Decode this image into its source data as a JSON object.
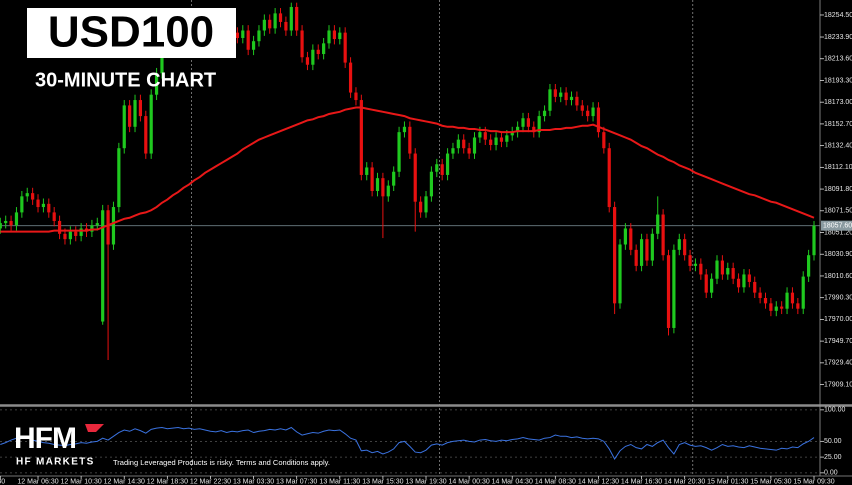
{
  "chart_data": {
    "type": "candlestick",
    "title": "USD100",
    "subtitle": "30-MINUTE CHART",
    "categories": [
      ":30",
      null,
      null,
      null,
      null,
      null,
      null,
      "12 Mar 06:30",
      null,
      null,
      null,
      null,
      null,
      null,
      null,
      "12 Mar 10:30",
      null,
      null,
      null,
      null,
      null,
      null,
      null,
      "12 Mar 14:30",
      null,
      null,
      null,
      null,
      null,
      null,
      null,
      "12 Mar 18:30",
      null,
      null,
      null,
      null,
      null,
      null,
      null,
      "12 Mar 22:30",
      null,
      null,
      null,
      null,
      null,
      null,
      null,
      "13 Mar 03:30",
      null,
      null,
      null,
      null,
      null,
      null,
      null,
      "13 Mar 07:30",
      null,
      null,
      null,
      null,
      null,
      null,
      null,
      "13 Mar 11:30",
      null,
      null,
      null,
      null,
      null,
      null,
      null,
      "13 Mar 15:30",
      null,
      null,
      null,
      null,
      null,
      null,
      null,
      "13 Mar 19:30",
      null,
      null,
      null,
      null,
      null,
      null,
      null,
      "14 Mar 00:30",
      null,
      null,
      null,
      null,
      null,
      null,
      null,
      "14 Mar 04:30",
      null,
      null,
      null,
      null,
      null,
      null,
      null,
      "14 Mar 08:30",
      null,
      null,
      null,
      null,
      null,
      null,
      null,
      "14 Mar 12:30",
      null,
      null,
      null,
      null,
      null,
      null,
      null,
      "14 Mar 16:30",
      null,
      null,
      null,
      null,
      null,
      null,
      null,
      "14 Mar 20:30",
      null,
      null,
      null,
      null,
      null,
      null,
      null,
      "15 Mar 01:30",
      null,
      null,
      null,
      null,
      null,
      null,
      null,
      "15 Mar 05:30",
      null,
      null,
      null,
      null,
      null,
      null,
      null,
      "15 Mar 09:30"
    ],
    "open": [
      18055,
      18060,
      18062,
      18058,
      18070,
      18085,
      18088,
      18082,
      18075,
      18078,
      18070,
      18062,
      18050,
      18045,
      18052,
      18048,
      18055,
      18052,
      18058,
      17968,
      18072,
      18040,
      18075,
      18130,
      18170,
      18150,
      18175,
      18160,
      18125,
      18180,
      18200,
      18225,
      18235,
      18240,
      18232,
      18245,
      18238,
      18250,
      18242,
      18236,
      18228,
      18220,
      18232,
      18226,
      18238,
      18233,
      18240,
      18222,
      18230,
      18240,
      18250,
      18242,
      18256,
      18248,
      18240,
      18262,
      18240,
      18215,
      18208,
      18222,
      18218,
      18228,
      18240,
      18232,
      18238,
      18210,
      18182,
      18175,
      18105,
      18112,
      18090,
      18102,
      18085,
      18095,
      18108,
      18145,
      18150,
      18125,
      18080,
      18070,
      18085,
      18108,
      18115,
      18105,
      18125,
      18130,
      18138,
      18130,
      18125,
      18140,
      18145,
      18138,
      18133,
      18140,
      18136,
      18142,
      18145,
      18150,
      18158,
      18150,
      18145,
      18160,
      18165,
      18185,
      18178,
      18182,
      18175,
      18178,
      18170,
      18165,
      18160,
      18168,
      18145,
      18130,
      18075,
      17985,
      18040,
      18055,
      18035,
      18020,
      18045,
      18025,
      18050,
      18068,
      18030,
      17962,
      18035,
      18045,
      18030,
      18020,
      18022,
      18012,
      17995,
      18008,
      18025,
      18012,
      18018,
      18008,
      18000,
      18012,
      18005,
      17995,
      17990,
      17985,
      17978,
      17982,
      17980,
      17995,
      17985,
      17980,
      18010,
      18030
    ],
    "high": [
      18065,
      18067,
      18067,
      18075,
      18090,
      18093,
      18093,
      18087,
      18083,
      18083,
      18075,
      18067,
      18055,
      18057,
      18057,
      18060,
      18060,
      18063,
      18065,
      18077,
      18077,
      18080,
      18135,
      18175,
      18175,
      18180,
      18180,
      18165,
      18185,
      18205,
      18230,
      18240,
      18245,
      18245,
      18250,
      18250,
      18255,
      18255,
      18247,
      18241,
      18233,
      18237,
      18237,
      18243,
      18243,
      18245,
      18245,
      18235,
      18245,
      18255,
      18255,
      18261,
      18261,
      18253,
      18266,
      18266,
      18245,
      18220,
      18227,
      18227,
      18233,
      18245,
      18245,
      18243,
      18243,
      18215,
      18187,
      18180,
      18117,
      18117,
      18107,
      18107,
      18100,
      18113,
      18150,
      18155,
      18155,
      18130,
      18085,
      18090,
      18113,
      18120,
      18120,
      18130,
      18135,
      18143,
      18143,
      18135,
      18145,
      18150,
      18150,
      18143,
      18145,
      18145,
      18147,
      18150,
      18155,
      18163,
      18163,
      18155,
      18165,
      18170,
      18190,
      18190,
      18187,
      18187,
      18183,
      18183,
      18175,
      18170,
      18173,
      18173,
      18150,
      18135,
      18080,
      18045,
      18060,
      18060,
      18040,
      18050,
      18050,
      18055,
      18085,
      18073,
      18035,
      18040,
      18050,
      18050,
      18035,
      18027,
      18027,
      18017,
      18013,
      18030,
      18030,
      18023,
      18023,
      18013,
      18017,
      18017,
      18010,
      18000,
      17995,
      17990,
      17987,
      17987,
      18000,
      18000,
      17990,
      18015,
      18035,
      18062
    ],
    "low": [
      18050,
      18055,
      18053,
      18053,
      18065,
      18080,
      18077,
      18070,
      18070,
      18065,
      18057,
      18045,
      18040,
      18040,
      18043,
      18043,
      18047,
      18047,
      18053,
      17965,
      17932,
      18035,
      18070,
      18125,
      18145,
      18145,
      18155,
      18120,
      18120,
      18175,
      18195,
      18220,
      18230,
      18227,
      18227,
      18233,
      18233,
      18237,
      18231,
      18223,
      18215,
      18215,
      18221,
      18221,
      18228,
      18228,
      18217,
      18217,
      18225,
      18235,
      18237,
      18237,
      18243,
      18235,
      18235,
      18235,
      18210,
      18203,
      18203,
      18213,
      18213,
      18223,
      18227,
      18227,
      18205,
      18177,
      18170,
      18100,
      18100,
      18085,
      18085,
      18046,
      18080,
      18090,
      18103,
      18140,
      18120,
      18052,
      18065,
      18065,
      18080,
      18103,
      18100,
      18100,
      18120,
      18125,
      18125,
      18120,
      18120,
      18135,
      18133,
      18128,
      18128,
      18131,
      18131,
      18137,
      18140,
      18145,
      18145,
      18140,
      18140,
      18155,
      18160,
      18173,
      18173,
      18170,
      18170,
      18165,
      18160,
      18155,
      18155,
      18140,
      18125,
      18070,
      17975,
      17980,
      18035,
      18030,
      18015,
      18015,
      18020,
      18020,
      18045,
      18025,
      17955,
      17957,
      18030,
      18025,
      18015,
      18015,
      18007,
      17990,
      17990,
      18003,
      18007,
      18007,
      18003,
      17995,
      17995,
      18000,
      17990,
      17985,
      17980,
      17973,
      17973,
      17975,
      17975,
      17980,
      17975,
      17975,
      18005,
      18025
    ],
    "close": [
      18060,
      18062,
      18058,
      18070,
      18085,
      18088,
      18082,
      18075,
      18078,
      18070,
      18062,
      18050,
      18045,
      18052,
      18048,
      18055,
      18052,
      18058,
      18060,
      18072,
      18040,
      18075,
      18130,
      18170,
      18150,
      18175,
      18160,
      18125,
      18180,
      18200,
      18225,
      18235,
      18240,
      18232,
      18245,
      18238,
      18250,
      18242,
      18236,
      18228,
      18220,
      18232,
      18226,
      18238,
      18233,
      18240,
      18222,
      18230,
      18240,
      18250,
      18242,
      18256,
      18248,
      18240,
      18262,
      18240,
      18215,
      18208,
      18222,
      18218,
      18228,
      18240,
      18232,
      18238,
      18210,
      18182,
      18175,
      18105,
      18112,
      18090,
      18102,
      18085,
      18095,
      18108,
      18145,
      18150,
      18125,
      18080,
      18070,
      18085,
      18108,
      18115,
      18105,
      18125,
      18130,
      18138,
      18130,
      18125,
      18140,
      18145,
      18138,
      18133,
      18140,
      18136,
      18142,
      18145,
      18150,
      18158,
      18150,
      18145,
      18160,
      18165,
      18185,
      18178,
      18182,
      18175,
      18178,
      18170,
      18165,
      18160,
      18168,
      18145,
      18130,
      18075,
      17985,
      18040,
      18055,
      18035,
      18020,
      18045,
      18025,
      18050,
      18068,
      18030,
      17962,
      18035,
      18045,
      18030,
      18020,
      18022,
      18012,
      17995,
      18008,
      18025,
      18012,
      18018,
      18008,
      18000,
      18012,
      18005,
      17995,
      17990,
      17985,
      17978,
      17982,
      17980,
      17995,
      17985,
      17980,
      18010,
      18030,
      18057.6
    ],
    "up_color": "#1fc91f",
    "down_color": "#e81010",
    "ylim": [
      17890,
      18268.5
    ],
    "yticks": [
      {
        "value": 18254.5,
        "label": "18254.50"
      },
      {
        "value": 18233.9,
        "label": "18233.90"
      },
      {
        "value": 18213.6,
        "label": "18213.60"
      },
      {
        "value": 18193.3,
        "label": "18193.30"
      },
      {
        "value": 18173,
        "label": "18173.00"
      },
      {
        "value": 18152.7,
        "label": "18152.70"
      },
      {
        "value": 18132.4,
        "label": "18132.40"
      },
      {
        "value": 18112.1,
        "label": "18112.10"
      },
      {
        "value": 18091.8,
        "label": "18091.80"
      },
      {
        "value": 18071.5,
        "label": "18071.50"
      },
      {
        "value": 18051.2,
        "label": "18051.20"
      },
      {
        "value": 18030.9,
        "label": "18030.90"
      },
      {
        "value": 18010.6,
        "label": "18010.60"
      },
      {
        "value": 17990.3,
        "label": "17990.30"
      },
      {
        "value": 17970,
        "label": "17970.00"
      },
      {
        "value": 17949.7,
        "label": "17949.70"
      },
      {
        "value": 17929.4,
        "label": "17929.40"
      },
      {
        "value": 17909.1,
        "label": "17909.10"
      }
    ],
    "last_price": {
      "value": 18057.6,
      "label": "18057.60"
    },
    "moving_average": {
      "color": "#e81818",
      "values": [
        18052,
        18052,
        18052,
        18052,
        18052,
        18052,
        18052,
        18052,
        18052,
        18052,
        18053,
        18053,
        18053,
        18053,
        18053,
        18053,
        18053,
        18054,
        18054,
        18056,
        18058,
        18060,
        18062,
        18064,
        18065,
        18067,
        18069,
        18070,
        18072,
        18075,
        18079,
        18082,
        18086,
        18089,
        18093,
        18096,
        18100,
        18103,
        18107,
        18110,
        18113,
        18116,
        18119,
        18122,
        18125,
        18129,
        18132,
        18135,
        18138,
        18140,
        18142,
        18144,
        18146,
        18148,
        18150,
        18152,
        18154,
        18156,
        18157,
        18159,
        18160,
        18162,
        18163,
        18164,
        18166,
        18167,
        18168,
        18168,
        18167,
        18166,
        18165,
        18164,
        18163,
        18162,
        18161,
        18160,
        18158,
        18157,
        18156,
        18155,
        18154,
        18153,
        18151,
        18150,
        18150,
        18149,
        18149,
        18148,
        18148,
        18147,
        18147,
        18146,
        18146,
        18145,
        18145,
        18145,
        18146,
        18146,
        18146,
        18146,
        18147,
        18147,
        18147,
        18148,
        18148,
        18149,
        18149,
        18150,
        18151,
        18151,
        18152,
        18150,
        18148,
        18146,
        18144,
        18142,
        18140,
        18138,
        18135,
        18132,
        18130,
        18127,
        18124,
        18122,
        18119,
        18117,
        18114,
        18112,
        18110,
        18107,
        18105,
        18103,
        18101,
        18099,
        18097,
        18095,
        18093,
        18091,
        18089,
        18087,
        18086,
        18084,
        18082,
        18080,
        18079,
        18077,
        18075,
        18073,
        18071,
        18069,
        18067,
        18065
      ]
    },
    "indicator": {
      "color": "#3a72e0",
      "ylim": [
        -5,
        105
      ],
      "yticks": [
        {
          "value": 100,
          "label": "100.00"
        },
        {
          "value": 50,
          "label": "50.00"
        },
        {
          "value": 25,
          "label": "25.00"
        },
        {
          "value": 0,
          "label": "0.00"
        }
      ],
      "values": [
        45,
        48,
        52,
        55,
        58,
        56,
        52,
        50,
        48,
        47,
        45,
        44,
        43,
        45,
        46,
        48,
        47,
        49,
        50,
        55,
        52,
        58,
        64,
        68,
        66,
        70,
        67,
        63,
        69,
        71,
        72,
        70,
        71,
        72,
        70,
        71,
        69,
        70,
        68,
        66,
        65,
        67,
        64,
        66,
        65,
        67,
        68,
        64,
        66,
        67,
        69,
        68,
        70,
        68,
        72,
        65,
        60,
        62,
        64,
        63,
        66,
        68,
        67,
        68,
        62,
        55,
        52,
        35,
        36,
        32,
        34,
        30,
        33,
        38,
        48,
        50,
        42,
        33,
        32,
        36,
        44,
        46,
        44,
        48,
        50,
        51,
        52,
        50,
        49,
        52,
        53,
        51,
        50,
        52,
        51,
        53,
        54,
        56,
        54,
        53,
        52,
        55,
        56,
        60,
        58,
        58,
        56,
        57,
        55,
        54,
        55,
        54,
        50,
        38,
        22,
        35,
        42,
        45,
        40,
        38,
        45,
        42,
        48,
        52,
        40,
        30,
        45,
        48,
        44,
        42,
        43,
        40,
        36,
        40,
        45,
        42,
        43,
        41,
        40,
        43,
        41,
        39,
        38,
        37,
        36,
        39,
        38,
        41,
        40,
        46,
        50,
        56
      ]
    }
  },
  "brand": {
    "logo": "HFM",
    "name": "HF MARKETS",
    "disclaimer": "Trading Leveraged Products is risky. Terms and Conditions apply."
  }
}
